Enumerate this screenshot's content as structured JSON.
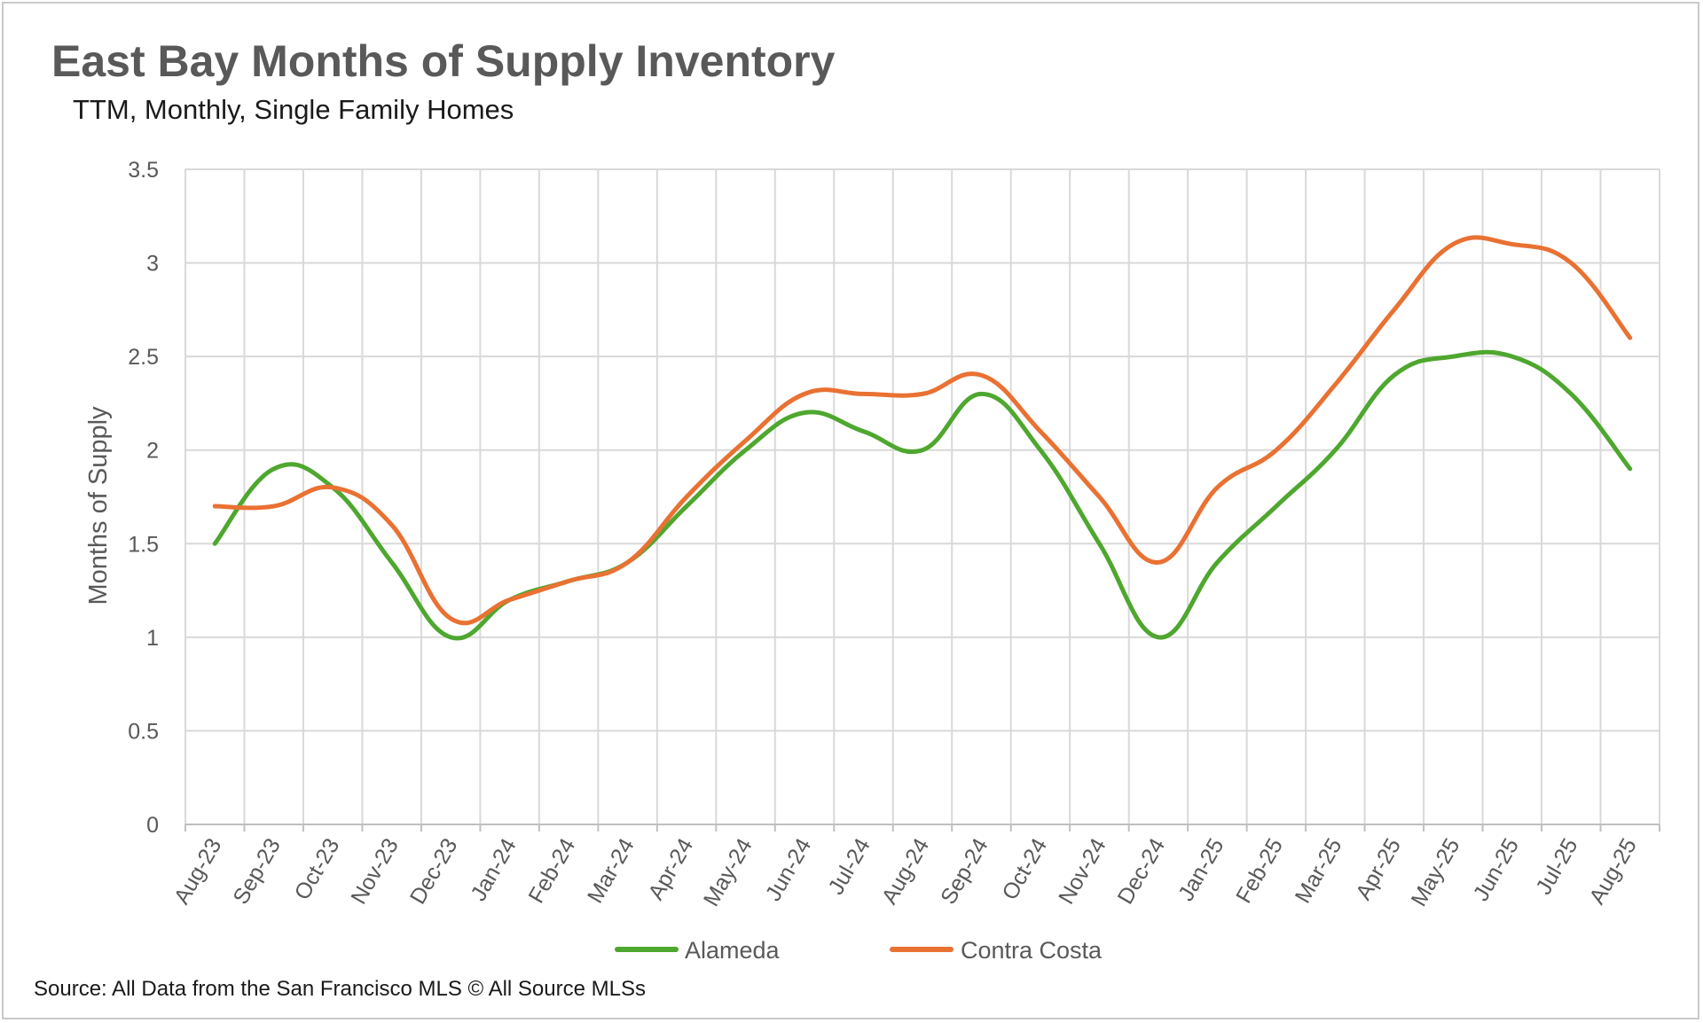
{
  "chart_data": {
    "type": "line",
    "title": "East Bay Months of Supply Inventory",
    "subtitle": "TTM, Monthly, Single Family Homes",
    "ylabel": "Months of Supply",
    "xlabel": "",
    "ylim": [
      0,
      3.5
    ],
    "yticks": [
      "0",
      "0.5",
      "1",
      "1.5",
      "2",
      "2.5",
      "3",
      "3.5"
    ],
    "grid": true,
    "legend": "bottom",
    "categories": [
      "Aug-23",
      "Sep-23",
      "Oct-23",
      "Nov-23",
      "Dec-23",
      "Jan-24",
      "Feb-24",
      "Mar-24",
      "Apr-24",
      "May-24",
      "Jun-24",
      "Jul-24",
      "Aug-24",
      "Sep-24",
      "Oct-24",
      "Nov-24",
      "Dec-24",
      "Jan-25",
      "Feb-25",
      "Mar-25",
      "Apr-25",
      "May-25",
      "Jun-25",
      "Jul-25",
      "Aug-25"
    ],
    "series": [
      {
        "name": "Alameda",
        "color": "#4ea72e",
        "values": [
          1.5,
          1.9,
          1.8,
          1.4,
          1.0,
          1.2,
          1.3,
          1.4,
          1.7,
          2.0,
          2.2,
          2.1,
          2.0,
          2.3,
          2.0,
          1.5,
          1.0,
          1.4,
          1.7,
          2.0,
          2.4,
          2.5,
          2.5,
          2.3,
          1.9
        ]
      },
      {
        "name": "Contra Costa",
        "color": "#e97132",
        "values": [
          1.7,
          1.7,
          1.8,
          1.6,
          1.1,
          1.2,
          1.3,
          1.4,
          1.75,
          2.05,
          2.3,
          2.3,
          2.3,
          2.4,
          2.1,
          1.75,
          1.4,
          1.8,
          2.0,
          2.35,
          2.75,
          3.1,
          3.1,
          3.0,
          2.6
        ]
      }
    ],
    "source": "Source: All Data from the San Francisco MLS © All Source MLSs"
  }
}
